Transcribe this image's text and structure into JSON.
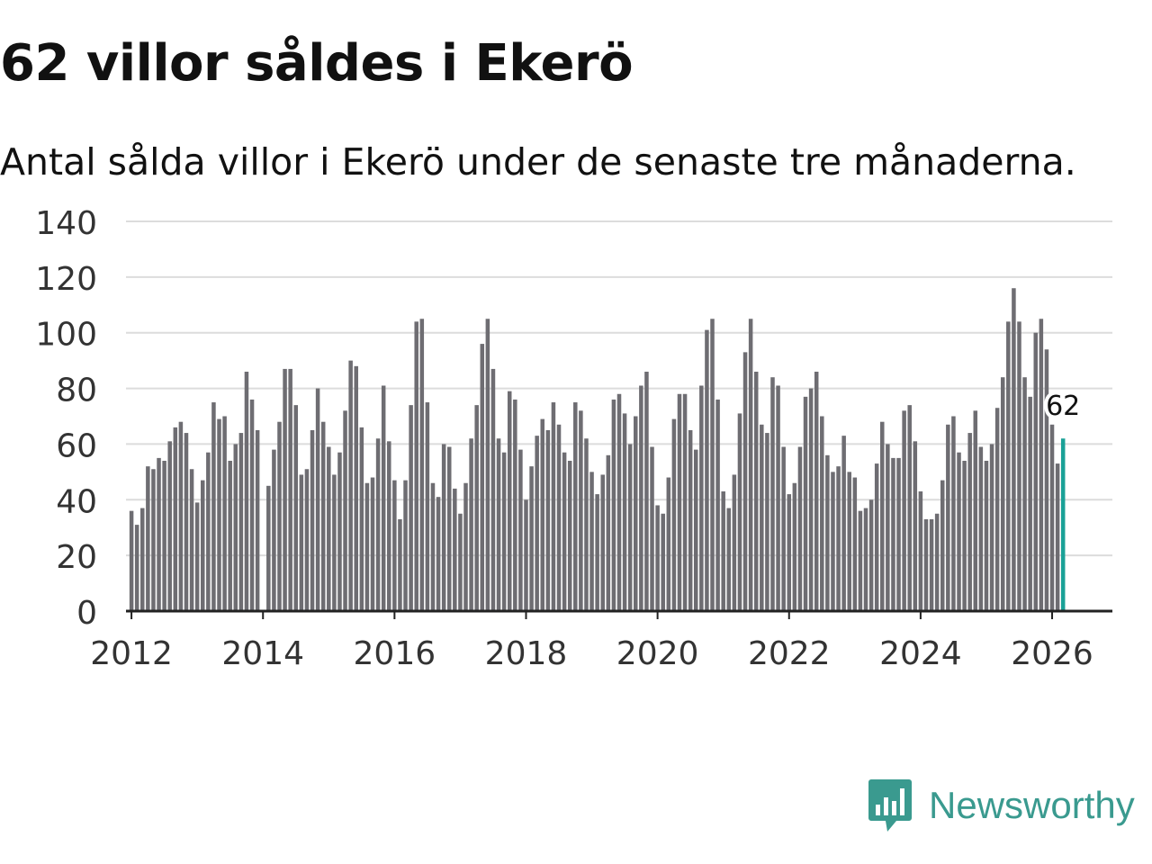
{
  "header": {
    "title": "62 villor såldes i Ekerö",
    "subtitle": "Antal sålda villor i Ekerö under de senaste tre månaderna."
  },
  "brand": {
    "name": "Newsworthy",
    "color": "#3a9a8f"
  },
  "colors": {
    "bar": "#6e6d72",
    "highlight": "#1aa197",
    "grid": "#dcdcdc",
    "axis": "#222222"
  },
  "chart_data": {
    "type": "bar",
    "title": "62 villor såldes i Ekerö",
    "subtitle": "Antal sålda villor i Ekerö under de senaste tre månaderna.",
    "xlabel": "",
    "ylabel": "",
    "ylim": [
      0,
      140
    ],
    "yticks": [
      "0",
      "20",
      "40",
      "60",
      "80",
      "100",
      "120",
      "140"
    ],
    "xticks": [
      "2012",
      "2014",
      "2016",
      "2018",
      "2020",
      "2022",
      "2024",
      "2026"
    ],
    "x_range": [
      "2011-12",
      "2026-12"
    ],
    "start": "2012-01",
    "grid": true,
    "highlight_label": "62",
    "values": [
      36,
      31,
      37,
      52,
      51,
      55,
      54,
      61,
      66,
      68,
      64,
      51,
      39,
      47,
      57,
      75,
      69,
      70,
      54,
      60,
      64,
      86,
      76,
      65,
      0,
      45,
      58,
      68,
      87,
      87,
      74,
      49,
      51,
      65,
      80,
      68,
      59,
      49,
      57,
      72,
      90,
      88,
      66,
      46,
      48,
      62,
      81,
      61,
      47,
      33,
      47,
      74,
      104,
      105,
      75,
      46,
      41,
      60,
      59,
      44,
      35,
      46,
      62,
      74,
      96,
      105,
      87,
      62,
      57,
      79,
      76,
      58,
      40,
      52,
      63,
      69,
      65,
      75,
      67,
      57,
      54,
      75,
      72,
      62,
      50,
      42,
      49,
      56,
      76,
      78,
      71,
      60,
      70,
      81,
      86,
      59,
      38,
      35,
      48,
      69,
      78,
      78,
      65,
      58,
      81,
      101,
      105,
      76,
      43,
      37,
      49,
      71,
      93,
      105,
      86,
      67,
      64,
      84,
      81,
      59,
      42,
      46,
      59,
      77,
      80,
      86,
      70,
      56,
      50,
      52,
      63,
      50,
      48,
      36,
      37,
      40,
      53,
      68,
      60,
      55,
      55,
      72,
      74,
      61,
      43,
      33,
      33,
      35,
      47,
      67,
      70,
      57,
      54,
      64,
      72,
      59,
      54,
      60,
      73,
      84,
      104,
      116,
      104,
      84,
      77,
      100,
      105,
      94,
      67,
      53,
      62
    ]
  }
}
